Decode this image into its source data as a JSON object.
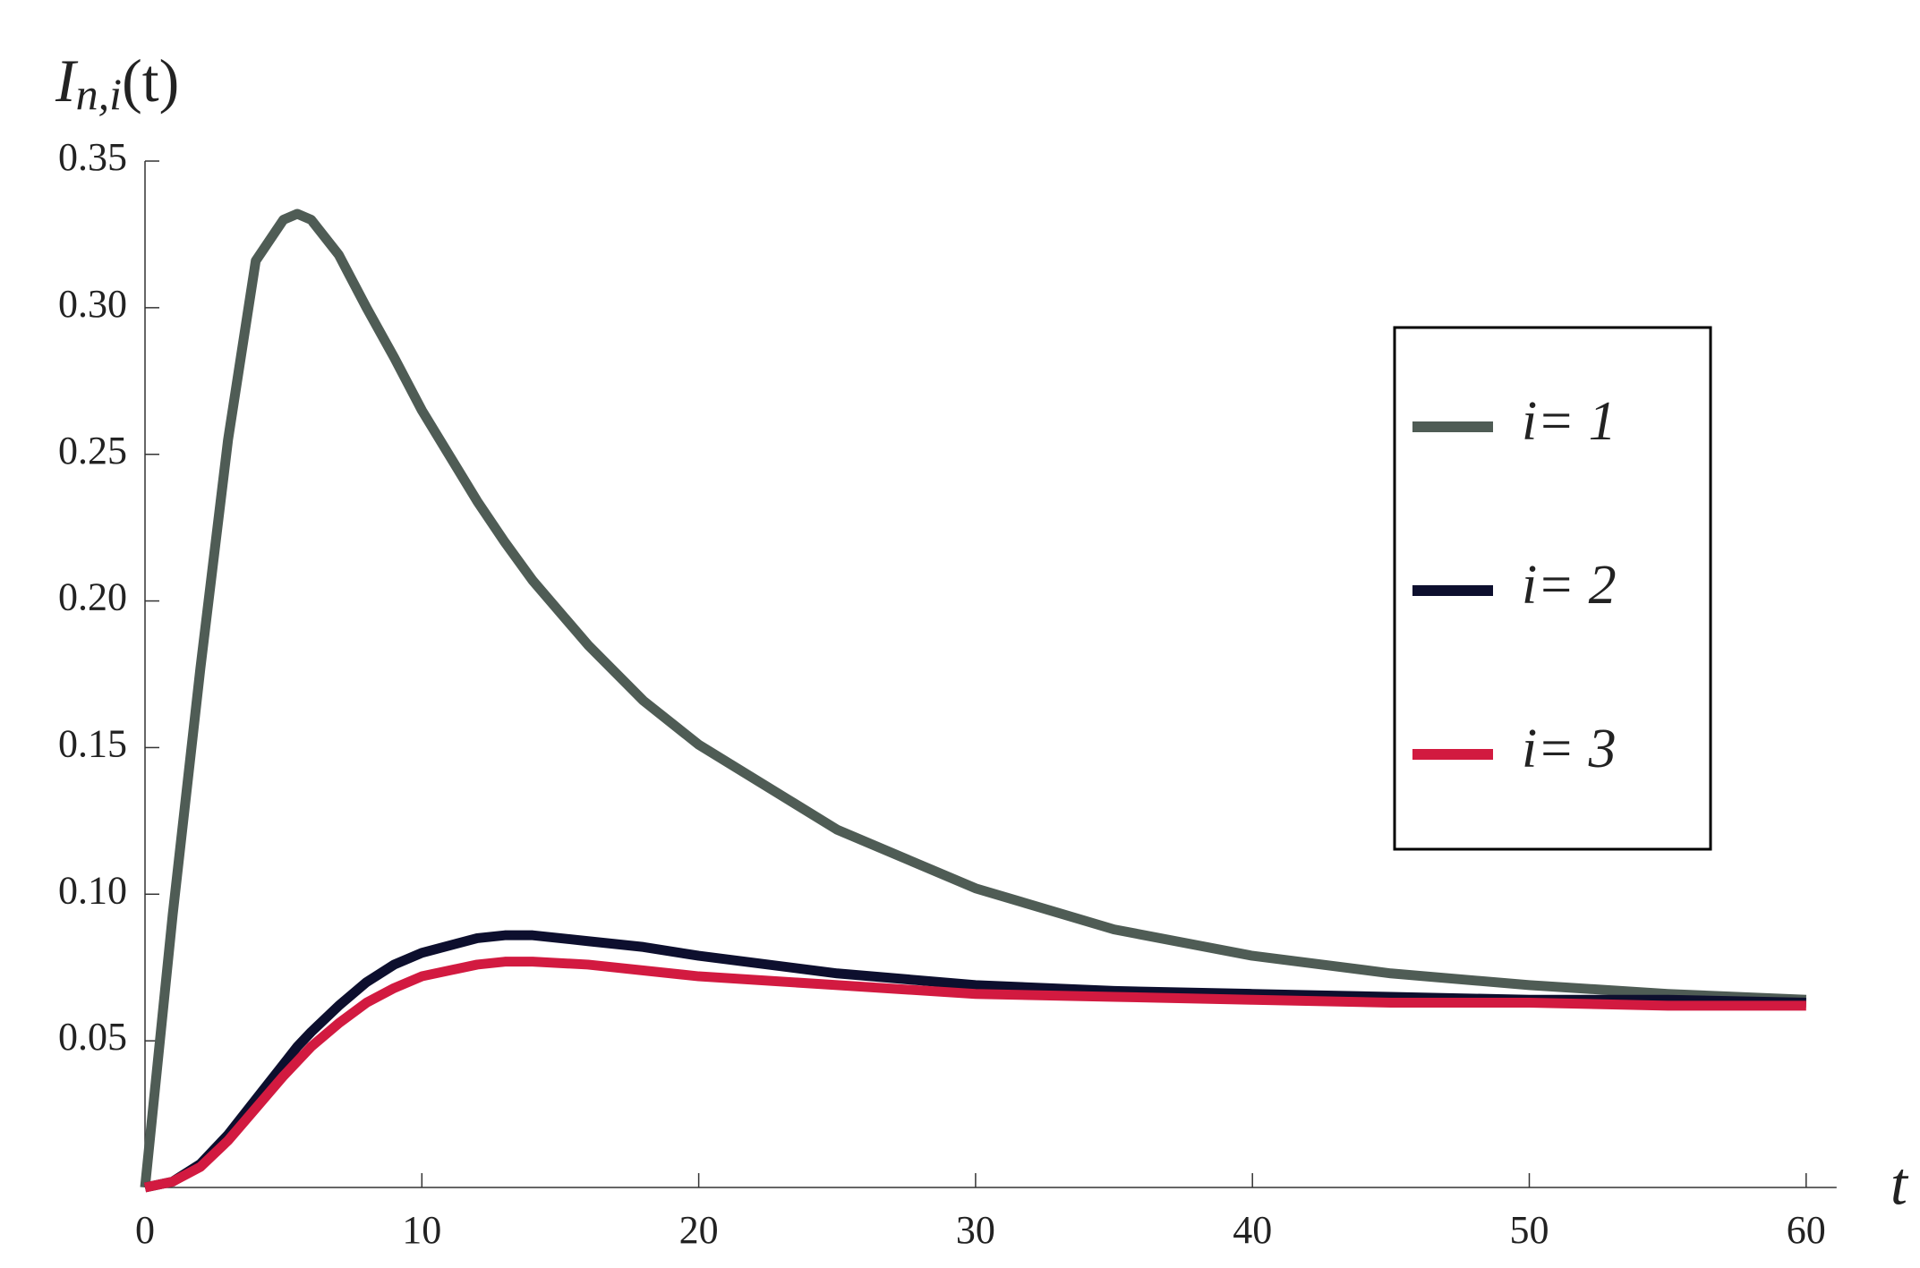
{
  "chart_data": {
    "type": "line",
    "ylabel_parts": [
      "I",
      "n,i",
      "(t)"
    ],
    "xlabel": "t",
    "x": [
      0,
      1,
      2,
      3,
      4,
      5,
      5.5,
      6,
      7,
      8,
      9,
      10,
      12,
      13,
      14,
      16,
      18,
      20,
      25,
      30,
      35,
      40,
      45,
      50,
      55,
      60
    ],
    "series": [
      {
        "name": "i= 1",
        "color": "#4f5c55",
        "values": [
          0,
          0.093,
          0.177,
          0.255,
          0.316,
          0.33,
          0.332,
          0.33,
          0.318,
          0.3,
          0.283,
          0.265,
          0.234,
          0.22,
          0.207,
          0.185,
          0.166,
          0.151,
          0.122,
          0.102,
          0.088,
          0.079,
          0.073,
          0.069,
          0.066,
          0.064
        ]
      },
      {
        "name": "i= 2",
        "color": "#0d0f2e",
        "values": [
          0,
          0.002,
          0.008,
          0.018,
          0.03,
          0.042,
          0.048,
          0.053,
          0.062,
          0.07,
          0.076,
          0.08,
          0.085,
          0.086,
          0.086,
          0.084,
          0.082,
          0.079,
          0.073,
          0.069,
          0.067,
          0.066,
          0.065,
          0.064,
          0.064,
          0.063
        ]
      },
      {
        "name": "i= 3",
        "color": "#d21a40",
        "values": [
          0,
          0.002,
          0.007,
          0.016,
          0.027,
          0.038,
          0.043,
          0.048,
          0.056,
          0.063,
          0.068,
          0.072,
          0.076,
          0.077,
          0.077,
          0.076,
          0.074,
          0.072,
          0.069,
          0.066,
          0.065,
          0.064,
          0.063,
          0.063,
          0.062,
          0.062
        ]
      }
    ],
    "xlim": [
      0,
      61.1
    ],
    "ylim": [
      0,
      0.35
    ],
    "xticks": [
      0,
      10,
      20,
      30,
      40,
      50,
      60
    ],
    "yticks": [
      0.05,
      {
        "value": 0.1,
        "label": "0.10"
      },
      0.15,
      {
        "value": 0.2,
        "label": "0.20"
      },
      0.25,
      {
        "value": 0.3,
        "label": "0.30"
      },
      0.35
    ],
    "grid": false,
    "legend": "right"
  }
}
